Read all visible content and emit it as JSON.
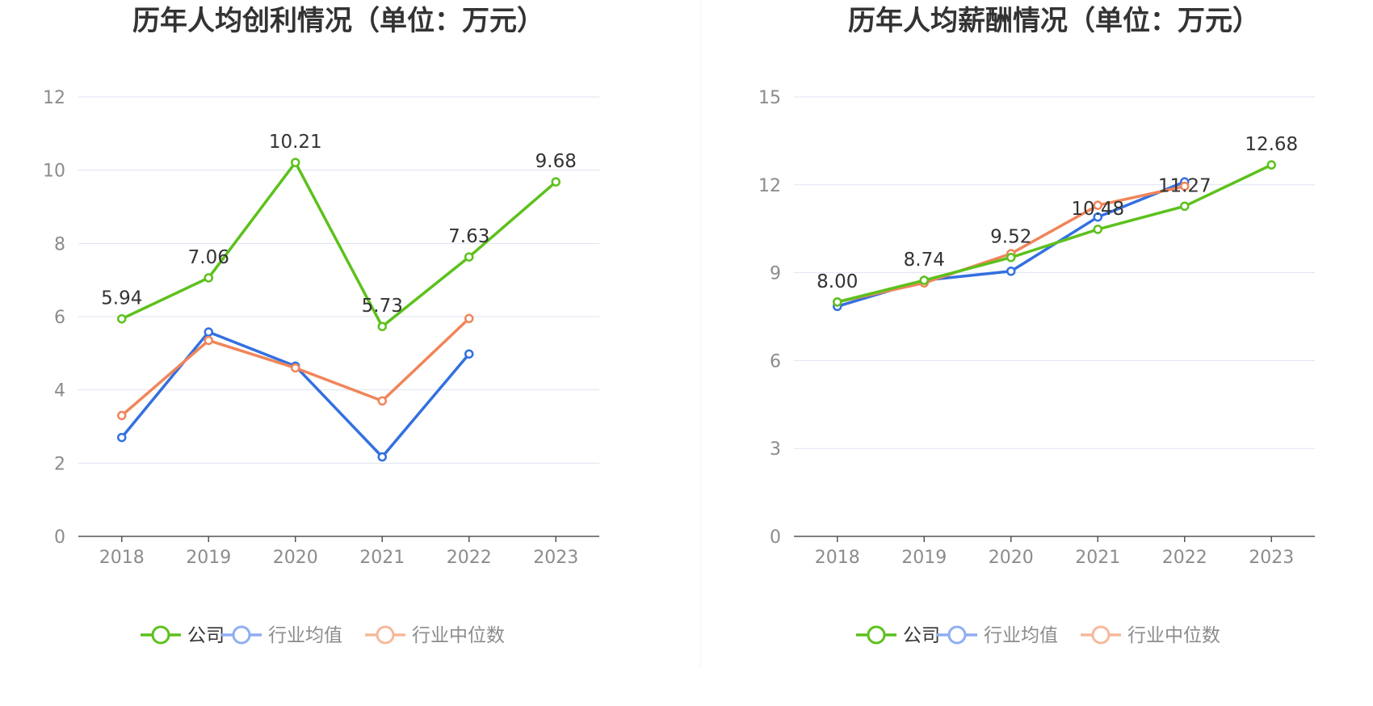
{
  "colors": {
    "company": "#5cc11c",
    "industry_avg": "#3370e0",
    "industry_median": "#f0855a",
    "grid": "#dfe3f2",
    "axis": "#555555"
  },
  "legend": {
    "company": "公司",
    "industry_avg": "行业均值",
    "industry_median": "行业中位数"
  },
  "chart_data": [
    {
      "type": "line",
      "title": "历年人均创利情况（单位：万元）",
      "categories": [
        "2018",
        "2019",
        "2020",
        "2021",
        "2022",
        "2023"
      ],
      "ylim": [
        0,
        12
      ],
      "yticks": [
        "0",
        "2",
        "4",
        "6",
        "8",
        "10",
        "12"
      ],
      "grid": true,
      "legend_position": "bottom",
      "series": [
        {
          "name": "公司",
          "key": "company",
          "values": [
            5.94,
            7.06,
            10.21,
            5.73,
            7.63,
            9.68
          ],
          "labels": [
            "5.94",
            "7.06",
            "10.21",
            "5.73",
            "7.63",
            "9.68"
          ]
        },
        {
          "name": "行业均值",
          "key": "industry_avg",
          "values": [
            2.7,
            5.58,
            4.65,
            2.17,
            4.98,
            null
          ]
        },
        {
          "name": "行业中位数",
          "key": "industry_median",
          "values": [
            3.3,
            5.35,
            4.6,
            3.7,
            5.95,
            null
          ]
        }
      ]
    },
    {
      "type": "line",
      "title": "历年人均薪酬情况（单位：万元）",
      "categories": [
        "2018",
        "2019",
        "2020",
        "2021",
        "2022",
        "2023"
      ],
      "ylim": [
        0,
        15
      ],
      "yticks": [
        "0",
        "3",
        "6",
        "9",
        "12",
        "15"
      ],
      "grid": true,
      "legend_position": "bottom",
      "series": [
        {
          "name": "公司",
          "key": "company",
          "values": [
            8.0,
            8.74,
            9.52,
            10.48,
            11.27,
            12.68
          ],
          "labels": [
            "8.00",
            "8.74",
            "9.52",
            "10.48",
            "11.27",
            "12.68"
          ]
        },
        {
          "name": "行业均值",
          "key": "industry_avg",
          "values": [
            7.85,
            8.74,
            9.05,
            10.9,
            12.1,
            null
          ]
        },
        {
          "name": "行业中位数",
          "key": "industry_median",
          "values": [
            8.0,
            8.65,
            9.65,
            11.3,
            11.95,
            null
          ]
        }
      ]
    }
  ]
}
